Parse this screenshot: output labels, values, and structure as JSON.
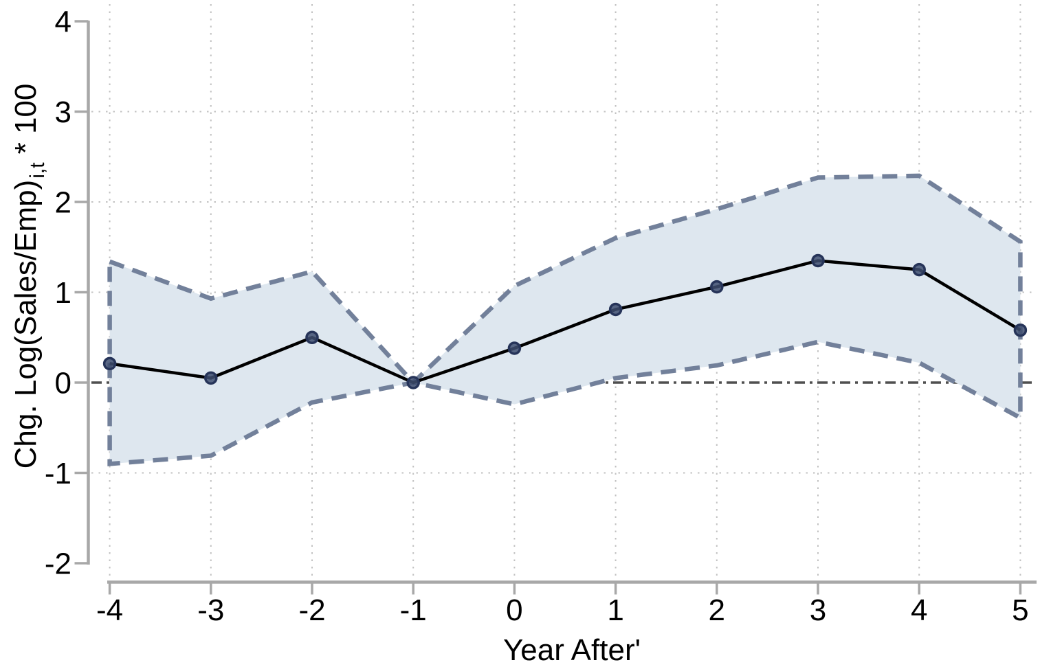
{
  "figure": {
    "xlabel": "Year After'",
    "ylabel_pre": "Chg. Log(Sales/Emp)",
    "ylabel_sub": "i,t",
    "ylabel_post": "* 100"
  },
  "chart_data": {
    "type": "line",
    "title": "",
    "xlabel": "Year After'",
    "ylabel": "Chg. Log(Sales/Emp)_{i,t} * 100",
    "x": [
      -4,
      -3,
      -2,
      -1,
      0,
      1,
      2,
      3,
      4,
      5
    ],
    "series": [
      {
        "name": "point-estimate",
        "style": "solid-line-with-markers",
        "values": [
          0.21,
          0.05,
          0.5,
          0.0,
          0.38,
          0.81,
          1.06,
          1.35,
          1.25,
          0.58
        ]
      },
      {
        "name": "ci-upper",
        "style": "dashed-band-edge",
        "values": [
          1.34,
          0.93,
          1.23,
          0.0,
          1.07,
          1.6,
          1.92,
          2.27,
          2.29,
          1.56
        ]
      },
      {
        "name": "ci-lower",
        "style": "dashed-band-edge",
        "values": [
          -0.9,
          -0.81,
          -0.22,
          0.0,
          -0.24,
          0.05,
          0.19,
          0.45,
          0.22,
          -0.39
        ]
      }
    ],
    "band": {
      "between": [
        "ci-lower",
        "ci-upper"
      ],
      "closed_sides": true
    },
    "x_ticks": [
      "-4",
      "-3",
      "-2",
      "-1",
      "0",
      "1",
      "2",
      "3",
      "4",
      "5"
    ],
    "x_tick_values": [
      -4,
      -3,
      -2,
      -1,
      0,
      1,
      2,
      3,
      4,
      5
    ],
    "y_ticks": [
      "4",
      "3",
      "2",
      "1",
      "0",
      "-1",
      "-2"
    ],
    "y_tick_values": [
      4,
      3,
      2,
      1,
      0,
      -1,
      -2
    ],
    "ylim": [
      -2.2,
      4.1
    ],
    "xlim": [
      -4.2,
      5.15
    ],
    "grid": "dotted",
    "grid_y_values": [
      3,
      2,
      1,
      -1
    ],
    "zero_line_y": 0,
    "legend": "none",
    "colors": {
      "band_fill": "#dee7ef",
      "band_edge": "#72809a",
      "point_line": "#000000",
      "marker_fill": "#3e4d70",
      "marker_stroke": "#263459",
      "zero_line": "#4f4f4f",
      "gridline": "#c2c2c2",
      "axis": "#a8a8a8",
      "text": "#000000"
    }
  }
}
